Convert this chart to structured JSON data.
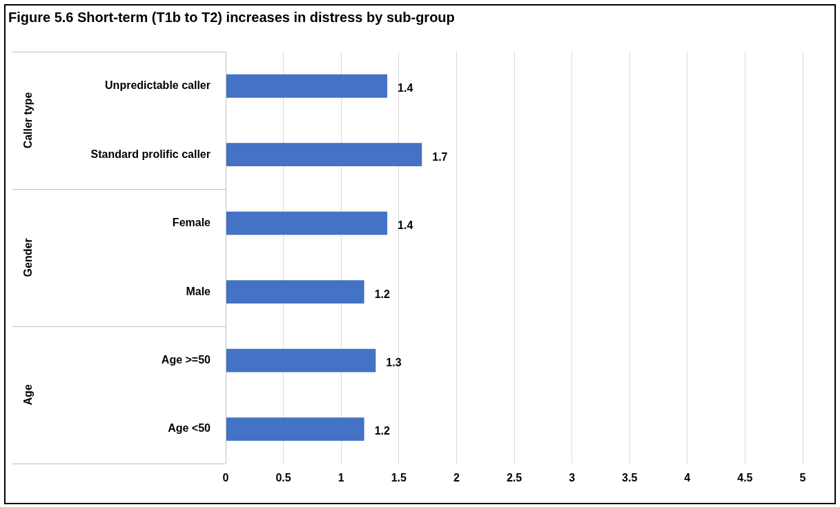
{
  "chart_data": {
    "type": "bar",
    "orientation": "horizontal",
    "title": "Figure 5.6  Short-term (T1b to T2) increases in distress by sub-group",
    "categories": [
      "Unpredictable caller",
      "Standard prolific caller",
      "Female",
      "Male",
      "Age >=50",
      "Age <50"
    ],
    "values": [
      1.4,
      1.7,
      1.4,
      1.2,
      1.3,
      1.2
    ],
    "color": "#4472c4",
    "xlim": [
      0,
      5
    ],
    "xticks": [
      0,
      0.5,
      1,
      1.5,
      2,
      2.5,
      3,
      3.5,
      4,
      4.5,
      5
    ],
    "grid": "x",
    "legend": false,
    "data_labels": true,
    "annotations": [
      "Caller type",
      "Gender",
      "Age"
    ]
  }
}
